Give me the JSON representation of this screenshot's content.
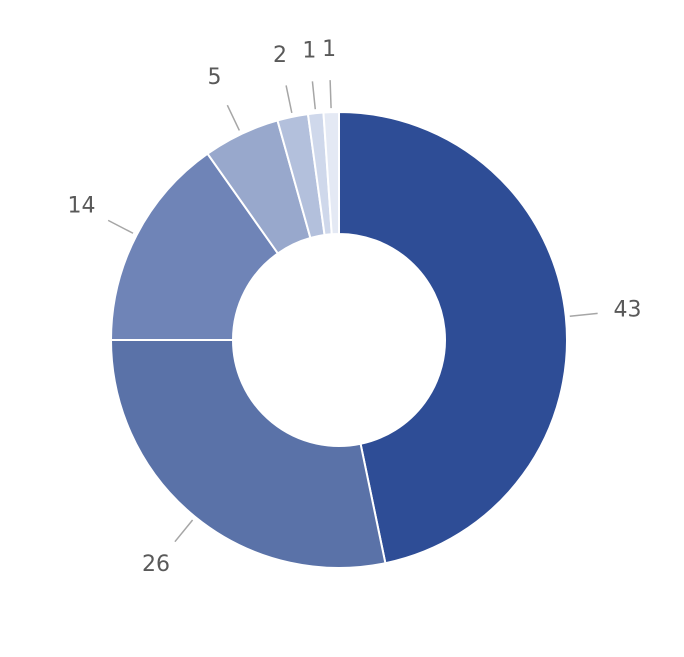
{
  "chart_data": {
    "type": "donut",
    "values": [
      43,
      26,
      14,
      5,
      2,
      1,
      1
    ],
    "colors": [
      "#2e4d96",
      "#5a72a8",
      "#6f84b7",
      "#98a8cc",
      "#b3c0dc",
      "#cfd8eb",
      "#e4e9f4"
    ]
  }
}
